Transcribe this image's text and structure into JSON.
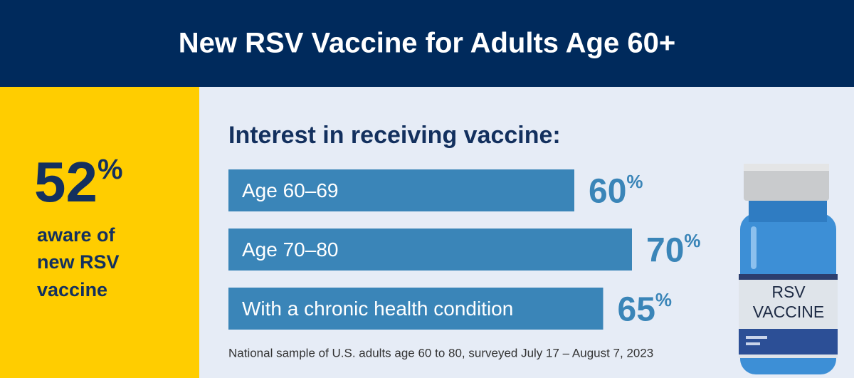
{
  "chart_data": {
    "type": "bar",
    "orientation": "horizontal",
    "title": "New RSV Vaccine for Adults Age 60+",
    "subtitle": "Interest in receiving vaccine:",
    "categories": [
      "Age 60–69",
      "Age 70–80",
      "With a chronic health condition"
    ],
    "values": [
      60,
      70,
      65
    ],
    "value_labels": [
      "60%",
      "70%",
      "65%"
    ],
    "color": "#3a85b8",
    "stat": {
      "value": 52,
      "value_label": "52%",
      "label_lines": [
        "aware of",
        "new RSV",
        "vaccine"
      ]
    },
    "vial_label": [
      "RSV",
      "VACCINE"
    ],
    "note": "National sample of U.S. adults age 60 to 80, surveyed July 17 – August 7, 2023"
  }
}
